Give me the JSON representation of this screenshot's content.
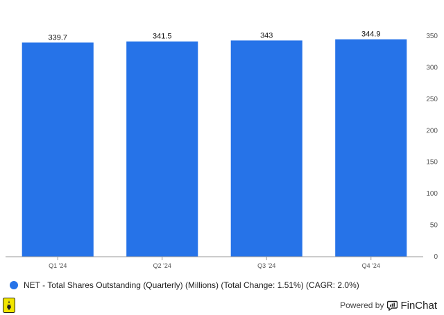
{
  "chart_data": {
    "type": "bar",
    "categories": [
      "Q1 '24",
      "Q2 '24",
      "Q3 '24",
      "Q4 '24"
    ],
    "values": [
      339.7,
      341.5,
      343,
      344.9
    ],
    "value_labels": [
      "339.7",
      "341.5",
      "343",
      "344.9"
    ],
    "ylim": [
      0,
      350
    ],
    "yticks": [
      0,
      50,
      100,
      150,
      200,
      250,
      300,
      350
    ],
    "y_axis_side": "right",
    "grid": false,
    "bar_color": "#2673e8",
    "legend_placement": "bottom-left"
  },
  "legend": {
    "label": "NET - Total Shares Outstanding (Quarterly) (Millions) (Total Change: 1.51%) (CAGR: 2.0%)",
    "color": "#2673e8"
  },
  "footer": {
    "powered_by": "Powered by",
    "brand": "FinChat",
    "brand_icon": "finchat-chat-bubble-icon",
    "logo_icon": "company-logo-icon"
  }
}
